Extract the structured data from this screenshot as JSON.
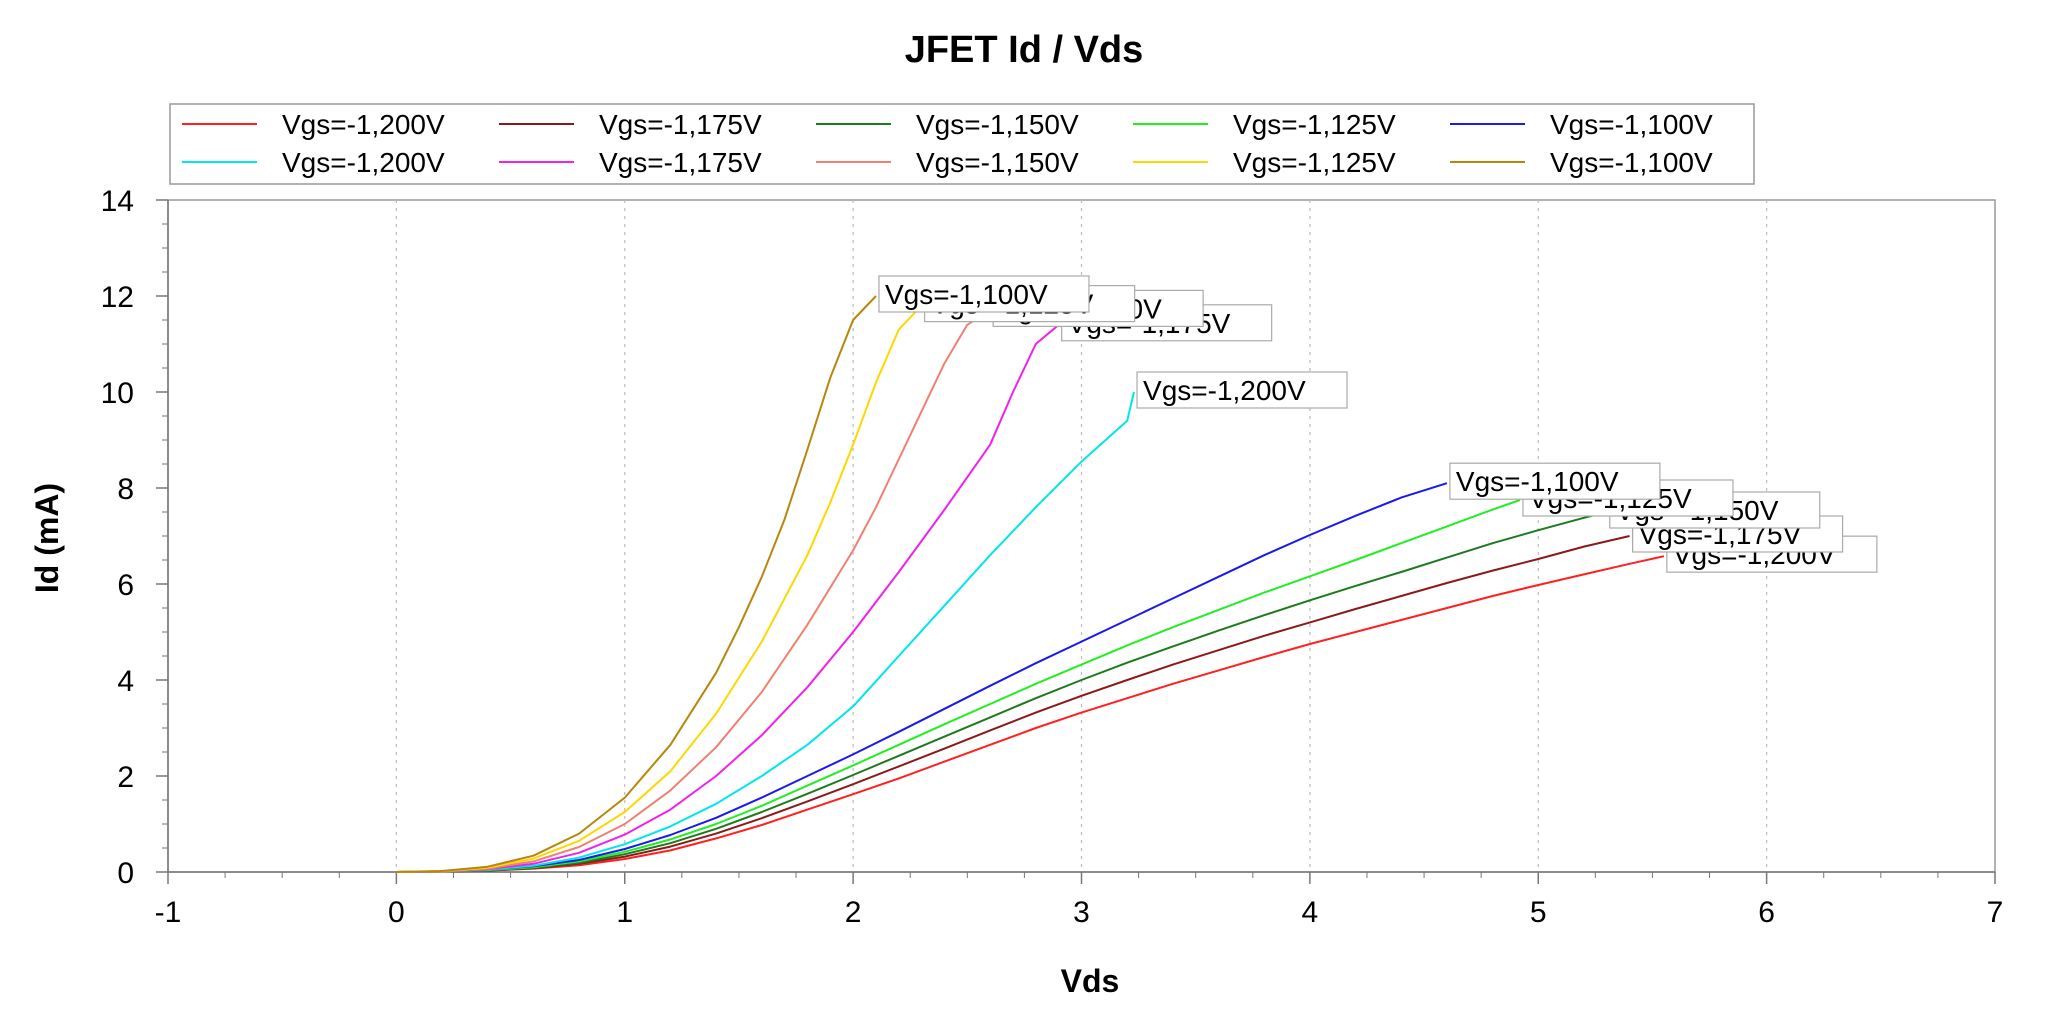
{
  "chart_data": {
    "type": "line",
    "title": "JFET Id / Vds",
    "xlabel": "Vds",
    "ylabel": "Id (mA)",
    "xlim": [
      -1,
      7
    ],
    "ylim": [
      0,
      14
    ],
    "xticks": [
      -1,
      0,
      1,
      2,
      3,
      4,
      5,
      6,
      7
    ],
    "yticks": [
      0,
      2,
      4,
      6,
      8,
      10,
      12,
      14
    ],
    "x_tick_labels": [
      "-1",
      "0",
      "1",
      "2",
      "3",
      "4",
      "5",
      "6",
      "7"
    ],
    "y_tick_labels": [
      "0",
      "2",
      "4",
      "6",
      "8",
      "10",
      "12",
      "14"
    ],
    "grid": "dotted vertical lines at x ticks",
    "legend": {
      "placement": "top",
      "columns": 5
    },
    "series": [
      {
        "name": "Vgs=-1,200V",
        "color": "#ff2020",
        "end_label": "Vgs=-1,200V",
        "points": [
          [
            0,
            0
          ],
          [
            0.2,
            0.01
          ],
          [
            0.4,
            0.03
          ],
          [
            0.6,
            0.07
          ],
          [
            0.8,
            0.14
          ],
          [
            1.0,
            0.27
          ],
          [
            1.2,
            0.45
          ],
          [
            1.4,
            0.7
          ],
          [
            1.6,
            0.98
          ],
          [
            1.8,
            1.3
          ],
          [
            2.0,
            1.62
          ],
          [
            2.2,
            1.95
          ],
          [
            2.4,
            2.3
          ],
          [
            2.6,
            2.65
          ],
          [
            2.8,
            3.0
          ],
          [
            3.0,
            3.32
          ],
          [
            3.2,
            3.62
          ],
          [
            3.4,
            3.92
          ],
          [
            3.6,
            4.2
          ],
          [
            3.8,
            4.48
          ],
          [
            4.0,
            4.75
          ],
          [
            4.2,
            5.0
          ],
          [
            4.4,
            5.25
          ],
          [
            4.6,
            5.5
          ],
          [
            4.8,
            5.75
          ],
          [
            5.0,
            5.98
          ],
          [
            5.2,
            6.2
          ],
          [
            5.4,
            6.42
          ],
          [
            5.55,
            6.58
          ]
        ]
      },
      {
        "name": "Vgs=-1,175V",
        "color": "#8b1a1a",
        "end_label": "Vgs=-1,175V",
        "points": [
          [
            0,
            0
          ],
          [
            0.2,
            0.01
          ],
          [
            0.4,
            0.03
          ],
          [
            0.6,
            0.08
          ],
          [
            0.8,
            0.17
          ],
          [
            1.0,
            0.32
          ],
          [
            1.2,
            0.53
          ],
          [
            1.4,
            0.8
          ],
          [
            1.6,
            1.12
          ],
          [
            1.8,
            1.47
          ],
          [
            2.0,
            1.83
          ],
          [
            2.2,
            2.2
          ],
          [
            2.4,
            2.57
          ],
          [
            2.6,
            2.95
          ],
          [
            2.8,
            3.32
          ],
          [
            3.0,
            3.67
          ],
          [
            3.2,
            4.0
          ],
          [
            3.4,
            4.32
          ],
          [
            3.6,
            4.62
          ],
          [
            3.8,
            4.92
          ],
          [
            4.0,
            5.2
          ],
          [
            4.2,
            5.48
          ],
          [
            4.4,
            5.75
          ],
          [
            4.6,
            6.02
          ],
          [
            4.8,
            6.28
          ],
          [
            5.0,
            6.52
          ],
          [
            5.2,
            6.78
          ],
          [
            5.4,
            7.0
          ]
        ]
      },
      {
        "name": "Vgs=-1,150V",
        "color": "#1e7a1e",
        "end_label": "Vgs=-1,150V",
        "points": [
          [
            0,
            0
          ],
          [
            0.2,
            0.01
          ],
          [
            0.4,
            0.04
          ],
          [
            0.6,
            0.09
          ],
          [
            0.8,
            0.19
          ],
          [
            1.0,
            0.37
          ],
          [
            1.2,
            0.6
          ],
          [
            1.4,
            0.9
          ],
          [
            1.6,
            1.25
          ],
          [
            1.8,
            1.63
          ],
          [
            2.0,
            2.02
          ],
          [
            2.2,
            2.42
          ],
          [
            2.4,
            2.82
          ],
          [
            2.6,
            3.22
          ],
          [
            2.8,
            3.62
          ],
          [
            3.0,
            4.0
          ],
          [
            3.2,
            4.36
          ],
          [
            3.4,
            4.7
          ],
          [
            3.6,
            5.03
          ],
          [
            3.8,
            5.35
          ],
          [
            4.0,
            5.66
          ],
          [
            4.2,
            5.96
          ],
          [
            4.4,
            6.25
          ],
          [
            4.6,
            6.55
          ],
          [
            4.8,
            6.85
          ],
          [
            5.0,
            7.12
          ],
          [
            5.2,
            7.38
          ],
          [
            5.3,
            7.5
          ]
        ]
      },
      {
        "name": "Vgs=-1,125V",
        "color": "#22ee22",
        "end_label": "Vgs=-1,125V",
        "points": [
          [
            0,
            0
          ],
          [
            0.2,
            0.01
          ],
          [
            0.4,
            0.04
          ],
          [
            0.6,
            0.1
          ],
          [
            0.8,
            0.22
          ],
          [
            1.0,
            0.42
          ],
          [
            1.2,
            0.68
          ],
          [
            1.4,
            1.0
          ],
          [
            1.6,
            1.38
          ],
          [
            1.8,
            1.8
          ],
          [
            2.0,
            2.22
          ],
          [
            2.2,
            2.65
          ],
          [
            2.4,
            3.08
          ],
          [
            2.6,
            3.5
          ],
          [
            2.8,
            3.92
          ],
          [
            3.0,
            4.32
          ],
          [
            3.2,
            4.72
          ],
          [
            3.4,
            5.1
          ],
          [
            3.6,
            5.46
          ],
          [
            3.8,
            5.82
          ],
          [
            4.0,
            6.16
          ],
          [
            4.2,
            6.5
          ],
          [
            4.4,
            6.85
          ],
          [
            4.6,
            7.2
          ],
          [
            4.8,
            7.55
          ],
          [
            4.92,
            7.75
          ]
        ]
      },
      {
        "name": "Vgs=-1,100V",
        "color": "#1a1aee",
        "end_label": "Vgs=-1,100V",
        "points": [
          [
            0,
            0
          ],
          [
            0.2,
            0.01
          ],
          [
            0.4,
            0.05
          ],
          [
            0.6,
            0.12
          ],
          [
            0.8,
            0.25
          ],
          [
            1.0,
            0.48
          ],
          [
            1.2,
            0.77
          ],
          [
            1.4,
            1.13
          ],
          [
            1.6,
            1.55
          ],
          [
            1.8,
            2.0
          ],
          [
            2.0,
            2.45
          ],
          [
            2.2,
            2.92
          ],
          [
            2.4,
            3.4
          ],
          [
            2.6,
            3.88
          ],
          [
            2.8,
            4.35
          ],
          [
            3.0,
            4.8
          ],
          [
            3.2,
            5.25
          ],
          [
            3.4,
            5.7
          ],
          [
            3.6,
            6.15
          ],
          [
            3.8,
            6.6
          ],
          [
            4.0,
            7.02
          ],
          [
            4.2,
            7.42
          ],
          [
            4.4,
            7.8
          ],
          [
            4.6,
            8.1
          ]
        ]
      },
      {
        "name": "Vgs=-1,200V",
        "color": "#00e5ee",
        "end_label": "Vgs=-1,200V",
        "points": [
          [
            0,
            0
          ],
          [
            0.2,
            0.01
          ],
          [
            0.4,
            0.05
          ],
          [
            0.6,
            0.13
          ],
          [
            0.8,
            0.3
          ],
          [
            1.0,
            0.58
          ],
          [
            1.2,
            0.95
          ],
          [
            1.4,
            1.42
          ],
          [
            1.6,
            2.0
          ],
          [
            1.8,
            2.65
          ],
          [
            2.0,
            3.45
          ],
          [
            2.2,
            4.5
          ],
          [
            2.4,
            5.55
          ],
          [
            2.6,
            6.6
          ],
          [
            2.8,
            7.6
          ],
          [
            3.0,
            8.55
          ],
          [
            3.2,
            9.4
          ],
          [
            3.23,
            10.0
          ]
        ]
      },
      {
        "name": "Vgs=-1,175V",
        "color": "#ee22ee",
        "end_label": "Vgs=-1,175V",
        "points": [
          [
            0,
            0
          ],
          [
            0.2,
            0.01
          ],
          [
            0.4,
            0.06
          ],
          [
            0.6,
            0.17
          ],
          [
            0.8,
            0.4
          ],
          [
            1.0,
            0.78
          ],
          [
            1.2,
            1.3
          ],
          [
            1.4,
            2.0
          ],
          [
            1.6,
            2.85
          ],
          [
            1.8,
            3.85
          ],
          [
            2.0,
            5.0
          ],
          [
            2.2,
            6.25
          ],
          [
            2.4,
            7.55
          ],
          [
            2.6,
            8.9
          ],
          [
            2.7,
            10.0
          ],
          [
            2.8,
            11.0
          ],
          [
            2.9,
            11.4
          ]
        ]
      },
      {
        "name": "Vgs=-1,150V",
        "color": "#f08070",
        "end_label": "Vgs=-1,150V",
        "points": [
          [
            0,
            0
          ],
          [
            0.2,
            0.01
          ],
          [
            0.4,
            0.07
          ],
          [
            0.6,
            0.22
          ],
          [
            0.8,
            0.52
          ],
          [
            1.0,
            1.0
          ],
          [
            1.2,
            1.7
          ],
          [
            1.4,
            2.6
          ],
          [
            1.6,
            3.75
          ],
          [
            1.8,
            5.15
          ],
          [
            2.0,
            6.7
          ],
          [
            2.1,
            7.6
          ],
          [
            2.2,
            8.6
          ],
          [
            2.3,
            9.6
          ],
          [
            2.4,
            10.6
          ],
          [
            2.5,
            11.4
          ],
          [
            2.6,
            11.7
          ]
        ]
      },
      {
        "name": "Vgs=-1,125V",
        "color": "#ffd700",
        "end_label": "Vgs=-1,125V",
        "points": [
          [
            0,
            0
          ],
          [
            0.2,
            0.02
          ],
          [
            0.4,
            0.09
          ],
          [
            0.6,
            0.28
          ],
          [
            0.8,
            0.65
          ],
          [
            1.0,
            1.25
          ],
          [
            1.2,
            2.1
          ],
          [
            1.4,
            3.3
          ],
          [
            1.6,
            4.8
          ],
          [
            1.8,
            6.6
          ],
          [
            1.9,
            7.7
          ],
          [
            2.0,
            8.9
          ],
          [
            2.1,
            10.2
          ],
          [
            2.2,
            11.3
          ],
          [
            2.3,
            11.8
          ]
        ]
      },
      {
        "name": "Vgs=-1,100V",
        "color": "#b8860b",
        "end_label": "Vgs=-1,100V",
        "points": [
          [
            0,
            0
          ],
          [
            0.2,
            0.02
          ],
          [
            0.4,
            0.11
          ],
          [
            0.6,
            0.34
          ],
          [
            0.8,
            0.8
          ],
          [
            1.0,
            1.55
          ],
          [
            1.2,
            2.65
          ],
          [
            1.4,
            4.15
          ],
          [
            1.5,
            5.1
          ],
          [
            1.6,
            6.15
          ],
          [
            1.7,
            7.35
          ],
          [
            1.8,
            8.8
          ],
          [
            1.9,
            10.3
          ],
          [
            2.0,
            11.5
          ],
          [
            2.1,
            12.0
          ]
        ]
      }
    ]
  }
}
